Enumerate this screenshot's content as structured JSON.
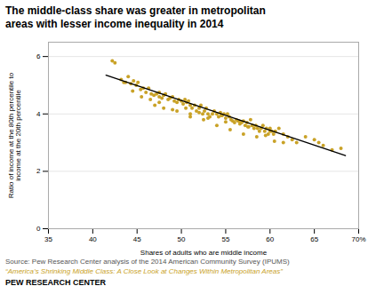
{
  "chart_data": {
    "type": "scatter",
    "title": "The middle-class share was greater in metropolitan\nareas with lesser income inequality in 2014",
    "xlabel": "Shares of adults who are middle income",
    "ylabel": "Ratio of income at the 80th percentile to\nincome at the 20th percentile",
    "xlim": [
      35,
      70
    ],
    "ylim": [
      0,
      6.5
    ],
    "xticks": [
      35,
      40,
      45,
      50,
      55,
      60,
      65,
      {
        "value": 70,
        "label": "70%"
      }
    ],
    "yticks": [
      0,
      2,
      4,
      6
    ],
    "grid": true,
    "color": "#C9A227",
    "x": [
      42.2,
      42.5,
      43.2,
      43.7,
      44.0,
      44.3,
      44.6,
      44.9,
      45.1,
      45.4,
      45.7,
      46.0,
      46.3,
      46.6,
      46.9,
      47.2,
      47.5,
      47.5,
      47.8,
      48.0,
      48.2,
      48.5,
      48.7,
      49.0,
      49.2,
      49.5,
      49.7,
      50.0,
      50.2,
      50.4,
      50.6,
      50.8,
      51.0,
      51.2,
      51.5,
      51.7,
      52.0,
      52.2,
      52.4,
      52.6,
      52.8,
      53.0,
      53.2,
      53.5,
      53.7,
      54.0,
      54.2,
      54.4,
      54.6,
      54.8,
      55.0,
      55.2,
      55.4,
      55.6,
      55.8,
      56.0,
      56.2,
      56.4,
      56.6,
      56.8,
      57.0,
      57.2,
      57.4,
      57.6,
      57.8,
      58.0,
      58.2,
      58.4,
      58.6,
      58.8,
      59.0,
      59.2,
      59.4,
      59.6,
      59.8,
      60.0,
      60.2,
      60.4,
      60.6,
      61.0,
      61.5,
      62.0,
      62.5,
      63.0,
      64.0,
      65.0,
      65.5,
      66.0,
      67.0,
      68.0,
      46.5,
      48.0,
      49.5,
      51.0,
      52.5,
      54.0,
      55.5,
      57.0,
      58.5,
      60.5,
      44.5,
      47.0,
      49.0,
      51.0,
      53.0,
      55.0,
      57.5,
      59.5,
      61.5,
      43.5,
      45.5,
      47.5,
      50.5,
      52.0,
      54.5,
      56.5,
      58.0,
      60.0
    ],
    "values": [
      5.85,
      5.78,
      5.2,
      5.1,
      5.3,
      5.05,
      5.15,
      5.0,
      5.1,
      4.85,
      4.9,
      4.75,
      4.9,
      4.7,
      4.65,
      4.7,
      4.6,
      4.75,
      4.55,
      4.65,
      4.7,
      4.5,
      4.55,
      4.6,
      4.45,
      4.4,
      4.5,
      4.45,
      4.35,
      4.5,
      4.4,
      4.45,
      4.3,
      4.2,
      4.3,
      4.1,
      4.2,
      4.3,
      4.0,
      4.1,
      4.2,
      4.0,
      3.9,
      4.0,
      4.1,
      4.0,
      3.9,
      4.05,
      3.95,
      4.0,
      3.85,
      4.0,
      3.9,
      3.8,
      3.75,
      3.7,
      3.8,
      3.75,
      3.65,
      3.7,
      3.75,
      3.6,
      3.7,
      3.55,
      3.8,
      3.6,
      3.5,
      3.6,
      3.5,
      3.4,
      3.5,
      3.6,
      3.4,
      3.5,
      3.3,
      3.5,
      3.4,
      3.3,
      3.4,
      3.5,
      3.3,
      3.2,
      3.1,
      3.0,
      3.2,
      3.1,
      3.0,
      2.9,
      2.75,
      2.8,
      4.5,
      4.2,
      4.1,
      3.9,
      3.8,
      3.6,
      3.45,
      3.3,
      3.2,
      3.05,
      4.8,
      4.3,
      4.15,
      4.0,
      3.85,
      3.72,
      3.55,
      3.25,
      3.0,
      5.1,
      4.6,
      4.4,
      4.2,
      4.05,
      3.95,
      3.75,
      3.6,
      3.4
    ],
    "trend": {
      "x": [
        41.5,
        68.5
      ],
      "values": [
        5.35,
        2.55
      ],
      "color": "#000000"
    },
    "annotations": [
      "Source: Pew Research Center analysis of the 2014 American Community Survey (IPUMS)",
      "“America’s Shrinking Middle Class: A Close Look at Changes Within Metropolitan Areas”",
      "PEW RESEARCH CENTER"
    ]
  }
}
